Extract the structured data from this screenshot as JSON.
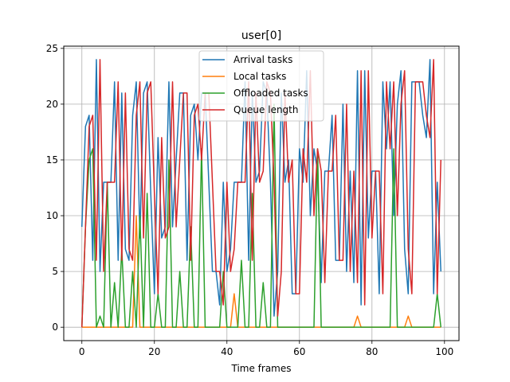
{
  "chart_data": {
    "type": "line",
    "title": "user[0]",
    "xlabel": "Time frames",
    "ylabel": "",
    "xlim": [
      -5,
      104
    ],
    "ylim": [
      -1.2,
      25.2
    ],
    "xticks": [
      0,
      20,
      40,
      60,
      80,
      100
    ],
    "yticks": [
      0,
      5,
      10,
      15,
      20,
      25
    ],
    "grid": true,
    "legend_position": "top-center",
    "series": [
      {
        "name": "Arrival tasks",
        "color": "#1f77b4",
        "x": [
          0,
          1,
          2,
          3,
          4,
          5,
          6,
          7,
          8,
          9,
          10,
          11,
          12,
          13,
          14,
          15,
          16,
          17,
          18,
          19,
          20,
          21,
          22,
          23,
          24,
          25,
          26,
          27,
          28,
          29,
          30,
          31,
          32,
          33,
          34,
          35,
          36,
          37,
          38,
          39,
          40,
          41,
          42,
          43,
          44,
          45,
          46,
          47,
          48,
          49,
          50,
          51,
          52,
          53,
          54,
          55,
          56,
          57,
          58,
          59,
          60,
          61,
          62,
          63,
          64,
          65,
          66,
          67,
          68,
          69,
          70,
          71,
          72,
          73,
          74,
          75,
          76,
          77,
          78,
          79,
          80,
          81,
          82,
          83,
          84,
          85,
          86,
          87,
          88,
          89,
          90,
          91,
          92,
          93,
          94,
          95,
          96,
          97,
          98,
          99
        ],
        "y": [
          9,
          18,
          19,
          6,
          24,
          5,
          13,
          13,
          13,
          22,
          6,
          21,
          7,
          6,
          19,
          22,
          8,
          21,
          22,
          12,
          3,
          17,
          8,
          9,
          22,
          9,
          15,
          21,
          21,
          6,
          19,
          20,
          15,
          21,
          21,
          13,
          5,
          5,
          2,
          13,
          5,
          7,
          13,
          13,
          13,
          22,
          6,
          21,
          13,
          14,
          22,
          21,
          13,
          1,
          5,
          21,
          13,
          15,
          3,
          3,
          16,
          13,
          23,
          10,
          16,
          14,
          4,
          14,
          14,
          19,
          6,
          6,
          20,
          5,
          14,
          4,
          23,
          2,
          23,
          8,
          14,
          14,
          3,
          22,
          16,
          22,
          10,
          20,
          23,
          7,
          3,
          22,
          22,
          22,
          19,
          17,
          24,
          3,
          13,
          5
        ]
      },
      {
        "name": "Local tasks",
        "color": "#ff7f0e",
        "x": [
          0,
          1,
          2,
          3,
          4,
          5,
          6,
          7,
          8,
          9,
          10,
          11,
          12,
          13,
          14,
          15,
          16,
          17,
          18,
          19,
          20,
          21,
          22,
          23,
          24,
          25,
          26,
          27,
          28,
          29,
          30,
          31,
          32,
          33,
          34,
          35,
          36,
          37,
          38,
          39,
          40,
          41,
          42,
          43,
          44,
          45,
          46,
          47,
          48,
          49,
          50,
          51,
          52,
          53,
          54,
          55,
          56,
          57,
          58,
          59,
          60,
          61,
          62,
          63,
          64,
          65,
          66,
          67,
          68,
          69,
          70,
          71,
          72,
          73,
          74,
          75,
          76,
          77,
          78,
          79,
          80,
          81,
          82,
          83,
          84,
          85,
          86,
          87,
          88,
          89,
          90,
          91,
          92,
          93,
          94,
          95,
          96,
          97,
          98,
          99
        ],
        "y": [
          0,
          0,
          0,
          0,
          0,
          0,
          0,
          0,
          0,
          0,
          0,
          0,
          0,
          0,
          0,
          10,
          0,
          0,
          0,
          0,
          0,
          0,
          0,
          0,
          0,
          0,
          0,
          0,
          0,
          0,
          0,
          0,
          0,
          0,
          0,
          0,
          0,
          0,
          0,
          0,
          0,
          0,
          3,
          0,
          0,
          0,
          0,
          0,
          0,
          0,
          0,
          0,
          0,
          0,
          0,
          0,
          0,
          0,
          0,
          0,
          0,
          0,
          0,
          0,
          0,
          0,
          0,
          0,
          0,
          0,
          0,
          0,
          0,
          0,
          0,
          0,
          1,
          0,
          0,
          0,
          0,
          0,
          0,
          0,
          0,
          0,
          0,
          0,
          0,
          0,
          1,
          0,
          0,
          0,
          0,
          0,
          0,
          0,
          0,
          0
        ]
      },
      {
        "name": "Offloaded tasks",
        "color": "#2ca02c",
        "x": [
          0,
          1,
          2,
          3,
          4,
          5,
          6,
          7,
          8,
          9,
          10,
          11,
          12,
          13,
          14,
          15,
          16,
          17,
          18,
          19,
          20,
          21,
          22,
          23,
          24,
          25,
          26,
          27,
          28,
          29,
          30,
          31,
          32,
          33,
          34,
          35,
          36,
          37,
          38,
          39,
          40,
          41,
          42,
          43,
          44,
          45,
          46,
          47,
          48,
          49,
          50,
          51,
          52,
          53,
          54,
          55,
          56,
          57,
          58,
          59,
          60,
          61,
          62,
          63,
          64,
          65,
          66,
          67,
          68,
          69,
          70,
          71,
          72,
          73,
          74,
          75,
          76,
          77,
          78,
          79,
          80,
          81,
          82,
          83,
          84,
          85,
          86,
          87,
          88,
          89,
          90,
          91,
          92,
          93,
          94,
          95,
          96,
          97,
          98,
          99
        ],
        "y": [
          0,
          9,
          15,
          16,
          0,
          1,
          0,
          13,
          0,
          4,
          0,
          7,
          0,
          0,
          5,
          0,
          10,
          0,
          12,
          0,
          0,
          3,
          0,
          0,
          15,
          0,
          0,
          5,
          0,
          0,
          9,
          0,
          0,
          16,
          0,
          0,
          0,
          0,
          0,
          5,
          0,
          0,
          0,
          0,
          6,
          0,
          0,
          12,
          0,
          0,
          4,
          0,
          0,
          20,
          0,
          0,
          0,
          0,
          0,
          0,
          0,
          0,
          0,
          0,
          0,
          16,
          0,
          0,
          0,
          0,
          0,
          0,
          0,
          0,
          0,
          0,
          0,
          0,
          0,
          0,
          0,
          0,
          0,
          0,
          0,
          0,
          16,
          0,
          0,
          0,
          0,
          0,
          0,
          0,
          0,
          0,
          0,
          0,
          3,
          0
        ]
      },
      {
        "name": "Queue length",
        "color": "#d62728",
        "x": [
          0,
          1,
          2,
          3,
          4,
          5,
          6,
          7,
          8,
          9,
          10,
          11,
          12,
          13,
          14,
          15,
          16,
          17,
          18,
          19,
          20,
          21,
          22,
          23,
          24,
          25,
          26,
          27,
          28,
          29,
          30,
          31,
          32,
          33,
          34,
          35,
          36,
          37,
          38,
          39,
          40,
          41,
          42,
          43,
          44,
          45,
          46,
          47,
          48,
          49,
          50,
          51,
          52,
          53,
          54,
          55,
          56,
          57,
          58,
          59,
          60,
          61,
          62,
          63,
          64,
          65,
          66,
          67,
          68,
          69,
          70,
          71,
          72,
          73,
          74,
          75,
          76,
          77,
          78,
          79,
          80,
          81,
          82,
          83,
          84,
          85,
          86,
          87,
          88,
          89,
          90,
          91,
          92,
          93,
          94,
          95,
          96,
          97,
          98,
          99
        ],
        "y": [
          0,
          9,
          18,
          19,
          6,
          24,
          5,
          13,
          13,
          13,
          22,
          6,
          21,
          7,
          6,
          19,
          22,
          8,
          21,
          22,
          12,
          3,
          17,
          8,
          9,
          22,
          9,
          15,
          21,
          21,
          6,
          19,
          20,
          15,
          21,
          21,
          13,
          5,
          5,
          2,
          13,
          5,
          7,
          13,
          13,
          13,
          22,
          6,
          21,
          13,
          14,
          22,
          21,
          13,
          1,
          5,
          21,
          13,
          15,
          3,
          3,
          16,
          13,
          23,
          10,
          16,
          14,
          4,
          14,
          14,
          19,
          6,
          6,
          20,
          5,
          14,
          4,
          23,
          2,
          23,
          8,
          14,
          14,
          3,
          22,
          16,
          22,
          10,
          20,
          23,
          7,
          3,
          22,
          22,
          22,
          19,
          17,
          24,
          3,
          15
        ]
      }
    ]
  }
}
